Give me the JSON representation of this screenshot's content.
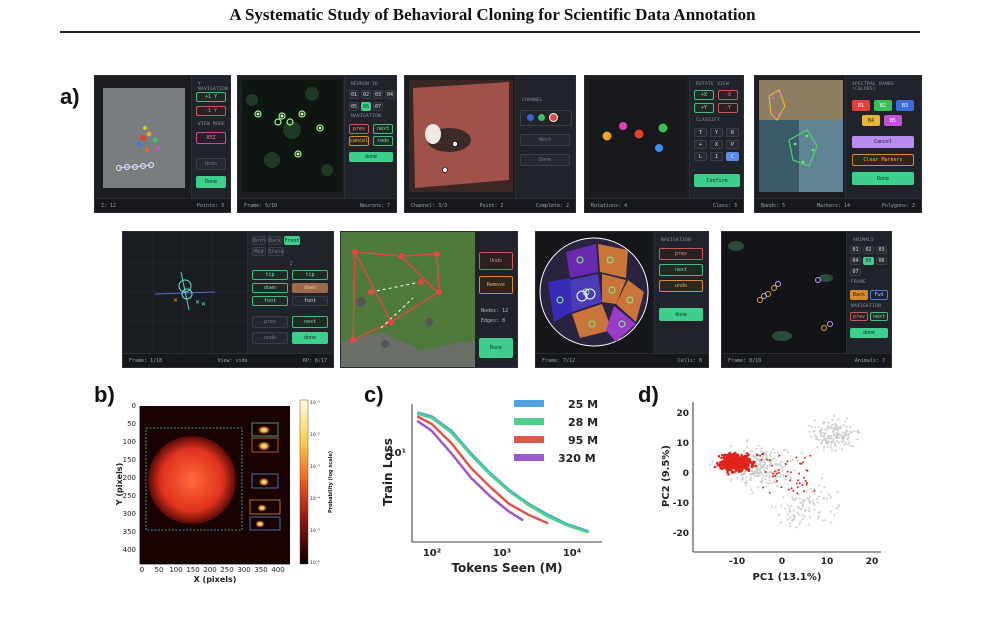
{
  "header": {
    "title": "A Systematic Study of Behavioral Cloning for Scientific Data Annotation"
  },
  "panels": {
    "a": "a)",
    "b": "b)",
    "c": "c)",
    "d": "d)"
  },
  "screenshots": {
    "s1": {
      "section1": "Y NAVIGATION",
      "up": "+1 Y",
      "down": "-1 Y",
      "section2": "VIEW MODE",
      "mode": "XYZ",
      "undo": "Undo",
      "done": "Done",
      "status_left": "Z: 12",
      "status_right": "Points: 3"
    },
    "s2": {
      "section1": "NEURON ID",
      "ids": [
        "01",
        "02",
        "03",
        "04",
        "05",
        "06",
        "07"
      ],
      "section2": "NAVIGATION",
      "prev": "prev",
      "next": "next",
      "cancel": "cancel",
      "redo": "redo",
      "done": "done",
      "status_left": "Frame: 5/10",
      "status_right": "Neurons: 7"
    },
    "s3": {
      "section1": "CHANNEL",
      "next": "Next",
      "done": "Done",
      "status_left": "Channel: 3/3",
      "status_mid": "Point: 2",
      "status_right": "Complete: 2"
    },
    "s4": {
      "section1": "ROTATE VIEW",
      "rot": [
        "+X",
        "-X",
        "+Y",
        "-Y"
      ],
      "section2": "CLASSIFY",
      "keys": [
        "T",
        "Y",
        "R",
        "+",
        "X",
        "P",
        "L",
        "I",
        "C"
      ],
      "confirm": "Confirm",
      "status_left": "Rotations: 4",
      "status_right": "Class: 3"
    },
    "s5": {
      "section1": "SPECTRAL BANDS (COLORS)",
      "bands": [
        "B1",
        "B2",
        "B3",
        "B4",
        "B5"
      ],
      "cancel": "Cancel",
      "clear": "Clear Markers",
      "done": "Done",
      "status_left": "Bands: 5",
      "status_mid": "Markers: 14",
      "status_right": "Polygons: 2"
    },
    "s6": {
      "views": [
        "Both",
        "Back",
        "Front",
        "Mid",
        "Stack"
      ],
      "section": "Z",
      "tip": "tip",
      "down": "down",
      "foot": "foot",
      "prev": "prev",
      "next": "next",
      "undo": "undo",
      "done": "done",
      "status_left": "Frame: 1/18",
      "status_mid": "View: side",
      "status_right": "KP: 8/17"
    },
    "s7": {
      "undo": "Undo",
      "remove": "Remove",
      "nodes": "Nodes: 12",
      "edges": "Edges: 8",
      "done": "Done"
    },
    "s8": {
      "section": "NAVIGATION",
      "prev": "prev",
      "next": "next",
      "undo": "undo",
      "done": "done",
      "status_left": "Frame: 7/12",
      "status_right": "Cells: 8"
    },
    "s9": {
      "section1": "ANIMALS",
      "ids": [
        "01",
        "02",
        "03",
        "04",
        "05",
        "06",
        "07"
      ],
      "section2": "FRAME",
      "back": "Back",
      "fwd": "Fwd",
      "section3": "NAVIGATION",
      "prev": "prev",
      "next": "next",
      "done": "done",
      "status_left": "Frame: 8/10",
      "status_right": "Animals: 7"
    }
  },
  "plot_b": {
    "ylabel": "Y (pixels)",
    "xlabel": "X (pixels)",
    "colorbar_label": "Probability (log scale)",
    "yticks": [
      "0",
      "50",
      "100",
      "150",
      "200",
      "250",
      "300",
      "350",
      "400"
    ],
    "xticks": [
      "0",
      "50",
      "100",
      "150",
      "200",
      "250",
      "300",
      "350",
      "400"
    ],
    "cticks": [
      "10⁻¹",
      "10⁻²",
      "10⁻³",
      "10⁻⁴",
      "10⁻⁵",
      "10⁻⁶"
    ]
  },
  "chart_data": [
    {
      "type": "line",
      "ylabel": "Train Loss",
      "xlabel": "Tokens Seen (M)",
      "xscale": "log",
      "yscale": "log",
      "xticks": [
        "10²",
        "10³",
        "10⁴"
      ],
      "yticks": [
        "10¹"
      ],
      "series": [
        {
          "name": "25 M",
          "color": "#4fa3e0",
          "x": [
            60,
            100,
            200,
            400,
            800,
            1500,
            3000,
            6000,
            12000,
            25000
          ],
          "y": [
            20.5,
            19,
            14.5,
            9.5,
            6.5,
            4.8,
            3.7,
            3.0,
            2.5,
            2.2
          ]
        },
        {
          "name": "28 M",
          "color": "#4fd18a",
          "x": [
            60,
            100,
            200,
            400,
            800,
            1500,
            3000,
            6000,
            12000,
            25000
          ],
          "y": [
            20,
            18.5,
            14,
            9.2,
            6.3,
            4.7,
            3.6,
            2.9,
            2.45,
            2.15
          ]
        },
        {
          "name": "95 M",
          "color": "#e0554a",
          "x": [
            60,
            100,
            200,
            400,
            800,
            1500,
            3000,
            6000
          ],
          "y": [
            19,
            16.5,
            11.5,
            7.2,
            5.0,
            3.7,
            3.0,
            2.55
          ]
        },
        {
          "name": "320 M",
          "color": "#9b59d0",
          "x": [
            60,
            100,
            200,
            400,
            800,
            1500,
            2500
          ],
          "y": [
            17.5,
            14.5,
            9.5,
            6.0,
            4.2,
            3.2,
            2.7
          ]
        }
      ]
    },
    {
      "type": "scatter",
      "xlabel": "PC1 (13.1%)",
      "ylabel": "PC2 (9.5%)",
      "xlim": [
        -18,
        22
      ],
      "ylim": [
        -25,
        22
      ],
      "xticks": [
        "-10",
        "0",
        "10",
        "20"
      ],
      "yticks": [
        "20",
        "10",
        "0",
        "-10",
        "-20"
      ],
      "series": [
        {
          "color": "#c8c8c8",
          "points": "background cloud"
        },
        {
          "color": "#e0231a",
          "points": "dense cluster near (-9, 3)"
        }
      ]
    }
  ],
  "caption": {
    "text": ""
  }
}
